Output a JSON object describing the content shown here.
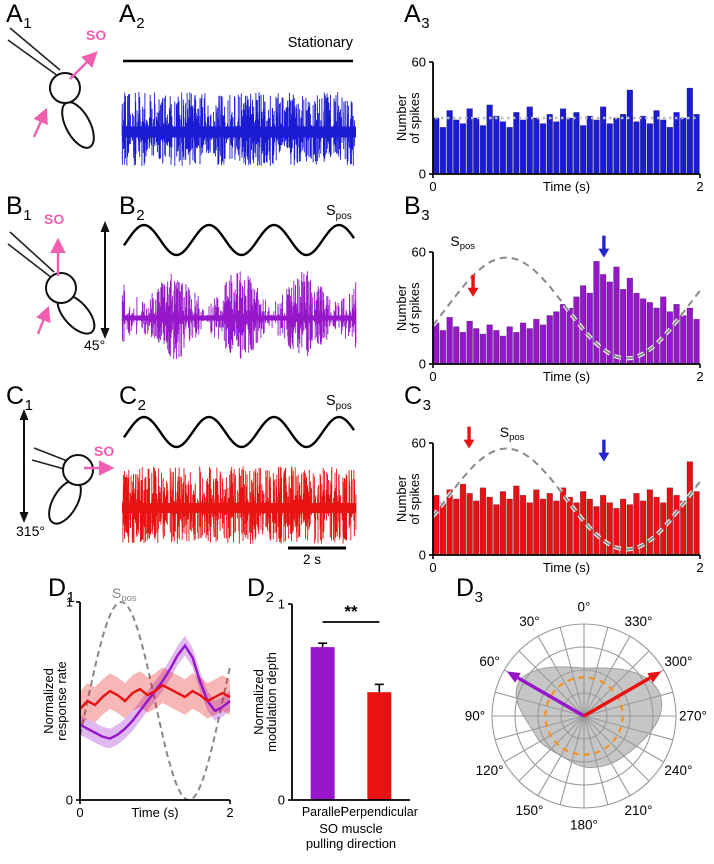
{
  "labels": {
    "A1": {
      "main": "A",
      "sub": "1"
    },
    "A2": {
      "main": "A",
      "sub": "2"
    },
    "A3": {
      "main": "A",
      "sub": "3"
    },
    "B1": {
      "main": "B",
      "sub": "1"
    },
    "B2": {
      "main": "B",
      "sub": "2"
    },
    "B3": {
      "main": "B",
      "sub": "3"
    },
    "C1": {
      "main": "C",
      "sub": "1"
    },
    "C2": {
      "main": "C",
      "sub": "2"
    },
    "C3": {
      "main": "C",
      "sub": "3"
    },
    "D1": {
      "main": "D",
      "sub": "1"
    },
    "D2": {
      "main": "D",
      "sub": "2"
    },
    "D3": {
      "main": "D",
      "sub": "3"
    }
  },
  "texts": {
    "stationary": "Stationary",
    "so": "SO",
    "angle_b1": "45°",
    "angle_c1": "315°",
    "scalebar": "2 s",
    "spos_main": "S",
    "spos_sub": "pos"
  },
  "colors": {
    "blue": "#1b1bd3",
    "purple": "#9616c9",
    "red": "#e81212",
    "pink": "#f05fb0",
    "dashed_gray": "#8a8a8a",
    "orange": "#f59120",
    "arrow_blue": "#2525cf"
  },
  "spike_trains": {
    "A2": {
      "color": "#1b1bd3",
      "seed": 7,
      "count": 700,
      "modulated": false
    },
    "B2": {
      "color": "#9616c9",
      "seed": 11,
      "count": 900,
      "modulated": true
    },
    "C2": {
      "color": "#e81212",
      "seed": 23,
      "count": 760,
      "modulated": false
    }
  },
  "chart_data": [
    {
      "id": "A3",
      "type": "bar",
      "xlabel": "Time (s)",
      "ylabel": "Number of spikes",
      "ylabel_lines": [
        "Number",
        "of spikes"
      ],
      "xlim": [
        0,
        2
      ],
      "ylim": [
        0,
        60
      ],
      "xticks": [
        0,
        2
      ],
      "yticks": [
        0,
        60
      ],
      "bar_color": "#1b1bd3",
      "bin_width": 0.05,
      "values": [
        30,
        25,
        34,
        29,
        27,
        35,
        30,
        26,
        37,
        31,
        28,
        25,
        33,
        29,
        36,
        30,
        27,
        32,
        28,
        35,
        30,
        33,
        26,
        31,
        29,
        36,
        27,
        30,
        32,
        45,
        28,
        31,
        27,
        34,
        29,
        25,
        33,
        30,
        46,
        32
      ],
      "mean_line": 30
    },
    {
      "id": "B3",
      "type": "bar",
      "xlabel": "Time (s)",
      "ylabel": "Number of spikes",
      "ylabel_lines": [
        "Number",
        "of spikes"
      ],
      "xlim": [
        0,
        2
      ],
      "ylim": [
        0,
        60
      ],
      "xticks": [
        0,
        2
      ],
      "yticks": [
        0,
        60
      ],
      "bar_color": "#9616c9",
      "bin_width": 0.05,
      "values": [
        22,
        18,
        25,
        20,
        17,
        23,
        19,
        16,
        21,
        18,
        15,
        20,
        17,
        22,
        19,
        24,
        21,
        26,
        28,
        32,
        30,
        36,
        42,
        38,
        55,
        48,
        44,
        52,
        40,
        46,
        38,
        35,
        33,
        30,
        36,
        28,
        32,
        26,
        30,
        24
      ],
      "overlay_sine": {
        "mid": 30,
        "amp": 27,
        "period": 1.8,
        "peak_t": 0.55,
        "label_main": "S",
        "label_sub": "pos"
      },
      "sine_label_t": 0.13,
      "arrows": [
        {
          "t": 0.3,
          "tip_value": 36,
          "color": "#e81212"
        },
        {
          "t": 1.28,
          "tip_value": 57,
          "color": "#2525cf"
        }
      ]
    },
    {
      "id": "C3",
      "type": "bar",
      "xlabel": "Time (s)",
      "ylabel": "Number of spikes",
      "ylabel_lines": [
        "Number",
        "of spikes"
      ],
      "xlim": [
        0,
        2
      ],
      "ylim": [
        0,
        60
      ],
      "xticks": [
        0,
        2
      ],
      "yticks": [
        0,
        60
      ],
      "bar_color": "#e81212",
      "bin_width": 0.05,
      "values": [
        32,
        28,
        35,
        30,
        38,
        33,
        29,
        36,
        31,
        27,
        34,
        30,
        37,
        32,
        28,
        35,
        30,
        33,
        29,
        36,
        31,
        28,
        34,
        30,
        26,
        32,
        28,
        25,
        30,
        27,
        33,
        29,
        35,
        31,
        28,
        36,
        32,
        29,
        50,
        34
      ],
      "overlay_sine": {
        "mid": 30,
        "amp": 27,
        "period": 1.8,
        "peak_t": 0.55,
        "label_main": "S",
        "label_sub": "pos"
      },
      "sine_label_t": 0.5,
      "arrows": [
        {
          "t": 0.27,
          "tip_value": 57,
          "color": "#e81212"
        },
        {
          "t": 1.28,
          "tip_value": 50,
          "color": "#2525cf"
        }
      ]
    },
    {
      "id": "D1",
      "type": "line",
      "xlabel": "Time (s)",
      "ylabel_lines": [
        "Normalized",
        "response rate"
      ],
      "xlim": [
        0,
        2
      ],
      "ylim": [
        0,
        1
      ],
      "xticks": [
        0,
        2
      ],
      "yticks": [
        0,
        1
      ],
      "sine": {
        "mid": 0.5,
        "amp": 0.5,
        "period": 1.8,
        "peak_t": 0.55,
        "label_main": "S",
        "label_sub": "pos"
      },
      "x": [
        0,
        0.1,
        0.2,
        0.3,
        0.4,
        0.5,
        0.6,
        0.7,
        0.8,
        0.9,
        1,
        1.1,
        1.2,
        1.3,
        1.4,
        1.5,
        1.6,
        1.7,
        1.8,
        1.9,
        2
      ],
      "series": [
        {
          "name": "Parallel",
          "color": "#9616c9",
          "band": 0.05,
          "y": [
            0.38,
            0.36,
            0.34,
            0.32,
            0.31,
            0.33,
            0.36,
            0.4,
            0.45,
            0.5,
            0.55,
            0.6,
            0.66,
            0.73,
            0.78,
            0.72,
            0.6,
            0.5,
            0.45,
            0.47,
            0.5
          ]
        },
        {
          "name": "Perpendicular",
          "color": "#e81212",
          "band": 0.09,
          "y": [
            0.46,
            0.5,
            0.48,
            0.52,
            0.55,
            0.53,
            0.5,
            0.54,
            0.56,
            0.53,
            0.55,
            0.58,
            0.56,
            0.54,
            0.52,
            0.55,
            0.53,
            0.5,
            0.52,
            0.54,
            0.52
          ]
        }
      ]
    },
    {
      "id": "D2",
      "type": "bar-categories",
      "categories": [
        "Parallel",
        "Perpendicular"
      ],
      "values": [
        0.78,
        0.55
      ],
      "errors": [
        0.02,
        0.04
      ],
      "colors": [
        "#9616c9",
        "#e81212"
      ],
      "ylabel_lines": [
        "Normalized",
        "modulation depth"
      ],
      "xlabel_lines": [
        "SO muscle",
        "pulling direction"
      ],
      "ylim": [
        0,
        1
      ],
      "yticks": [
        0,
        1
      ],
      "significance": "**"
    },
    {
      "id": "D3",
      "type": "polar",
      "angle_step": 15,
      "values": [
        0.52,
        0.55,
        0.62,
        0.72,
        0.82,
        0.78,
        0.66,
        0.58,
        0.56,
        0.52,
        0.5,
        0.52,
        0.56,
        0.58,
        0.6,
        0.62,
        0.66,
        0.74,
        0.84,
        0.88,
        0.82,
        0.7,
        0.6,
        0.54
      ],
      "angle_labels": [
        "0°",
        "30°",
        "60°",
        "90°",
        "120°",
        "150°",
        "180°",
        "210°",
        "240°",
        "270°",
        "300°",
        "330°"
      ],
      "label_step": 30,
      "ref_circle": 0.42,
      "rings": 4,
      "arrows": [
        {
          "angle": 60,
          "length": 0.97,
          "color": "#9616c9"
        },
        {
          "angle": 300,
          "length": 0.97,
          "color": "#e81212"
        }
      ]
    }
  ]
}
